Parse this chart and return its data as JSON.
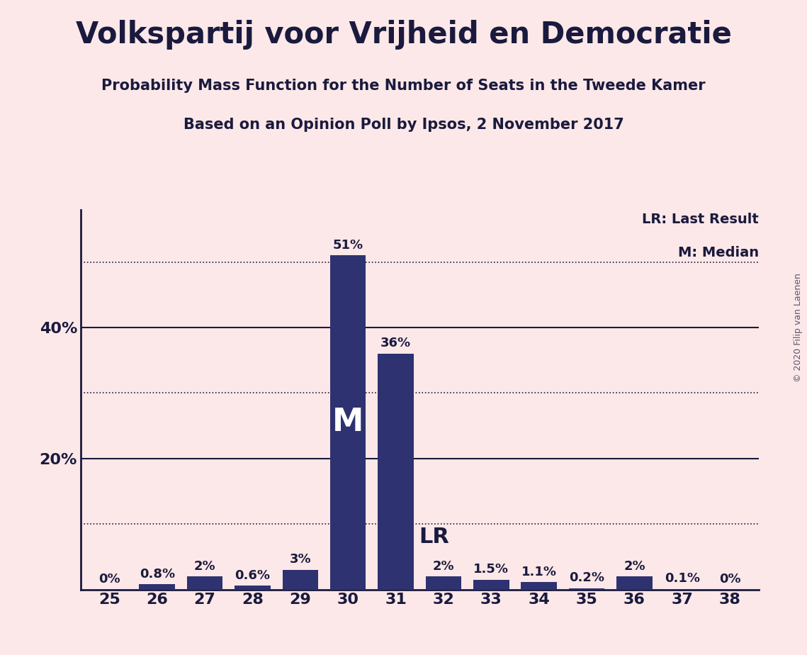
{
  "title": "Volkspartij voor Vrijheid en Democratie",
  "subtitle1": "Probability Mass Function for the Number of Seats in the Tweede Kamer",
  "subtitle2": "Based on an Opinion Poll by Ipsos, 2 November 2017",
  "copyright": "© 2020 Filip van Laenen",
  "categories": [
    25,
    26,
    27,
    28,
    29,
    30,
    31,
    32,
    33,
    34,
    35,
    36,
    37,
    38
  ],
  "values": [
    0.0,
    0.8,
    2.0,
    0.6,
    3.0,
    51.0,
    36.0,
    2.0,
    1.5,
    1.1,
    0.2,
    2.0,
    0.1,
    0.0
  ],
  "labels": [
    "0%",
    "0.8%",
    "2%",
    "0.6%",
    "3%",
    "51%",
    "36%",
    "2%",
    "1.5%",
    "1.1%",
    "0.2%",
    "2%",
    "0.1%",
    "0%"
  ],
  "bar_color": "#2e3270",
  "background_color": "#fce8e8",
  "axis_color": "#1a1a3e",
  "text_color": "#1a1a3e",
  "median_seat": 30,
  "median_label": "M",
  "lr_seat": 31,
  "lr_label": "LR",
  "lr_legend": "LR: Last Result",
  "m_legend": "M: Median",
  "ymax": 58,
  "dotted_lines": [
    10,
    30,
    50
  ],
  "solid_lines": [
    20,
    40
  ]
}
